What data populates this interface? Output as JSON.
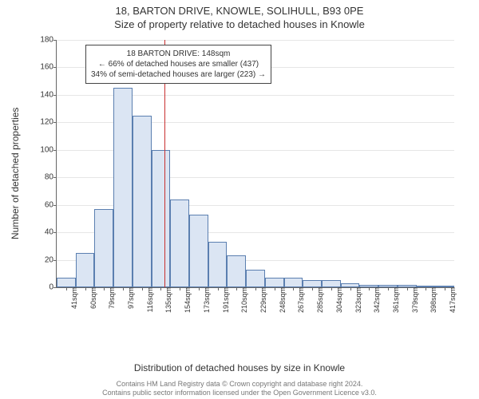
{
  "title": "18, BARTON DRIVE, KNOWLE, SOLIHULL, B93 0PE",
  "subtitle": "Size of property relative to detached houses in Knowle",
  "yaxis_label": "Number of detached properties",
  "xaxis_label": "Distribution of detached houses by size in Knowle",
  "footer_line1": "Contains HM Land Registry data © Crown copyright and database right 2024.",
  "footer_line2": "Contains public sector information licensed under the Open Government Licence v3.0.",
  "chart": {
    "type": "histogram",
    "ylim": [
      0,
      180
    ],
    "ytick_step": 20,
    "bar_fill": "#dbe5f3",
    "bar_stroke": "#5b7fb0",
    "grid_color": "#e6e6e6",
    "axis_color": "#666666",
    "background_color": "#ffffff",
    "marker_color": "#c93030",
    "marker_x_value": 148,
    "x_start": 41,
    "x_step": 18.8,
    "x_tick_labels": [
      "41sqm",
      "60sqm",
      "79sqm",
      "97sqm",
      "116sqm",
      "135sqm",
      "154sqm",
      "173sqm",
      "191sqm",
      "210sqm",
      "229sqm",
      "248sqm",
      "267sqm",
      "285sqm",
      "304sqm",
      "323sqm",
      "342sqm",
      "361sqm",
      "379sqm",
      "398sqm",
      "417sqm"
    ],
    "values": [
      7,
      25,
      57,
      145,
      125,
      100,
      64,
      53,
      33,
      23,
      13,
      7,
      7,
      5,
      5,
      3,
      2,
      2,
      2,
      1,
      1
    ],
    "label_fontsize": 12,
    "tick_fontsize": 10
  },
  "callout": {
    "line1": "18 BARTON DRIVE: 148sqm",
    "line2": "← 66% of detached houses are smaller (437)",
    "line3": "34% of semi-detached houses are larger (223) →"
  }
}
